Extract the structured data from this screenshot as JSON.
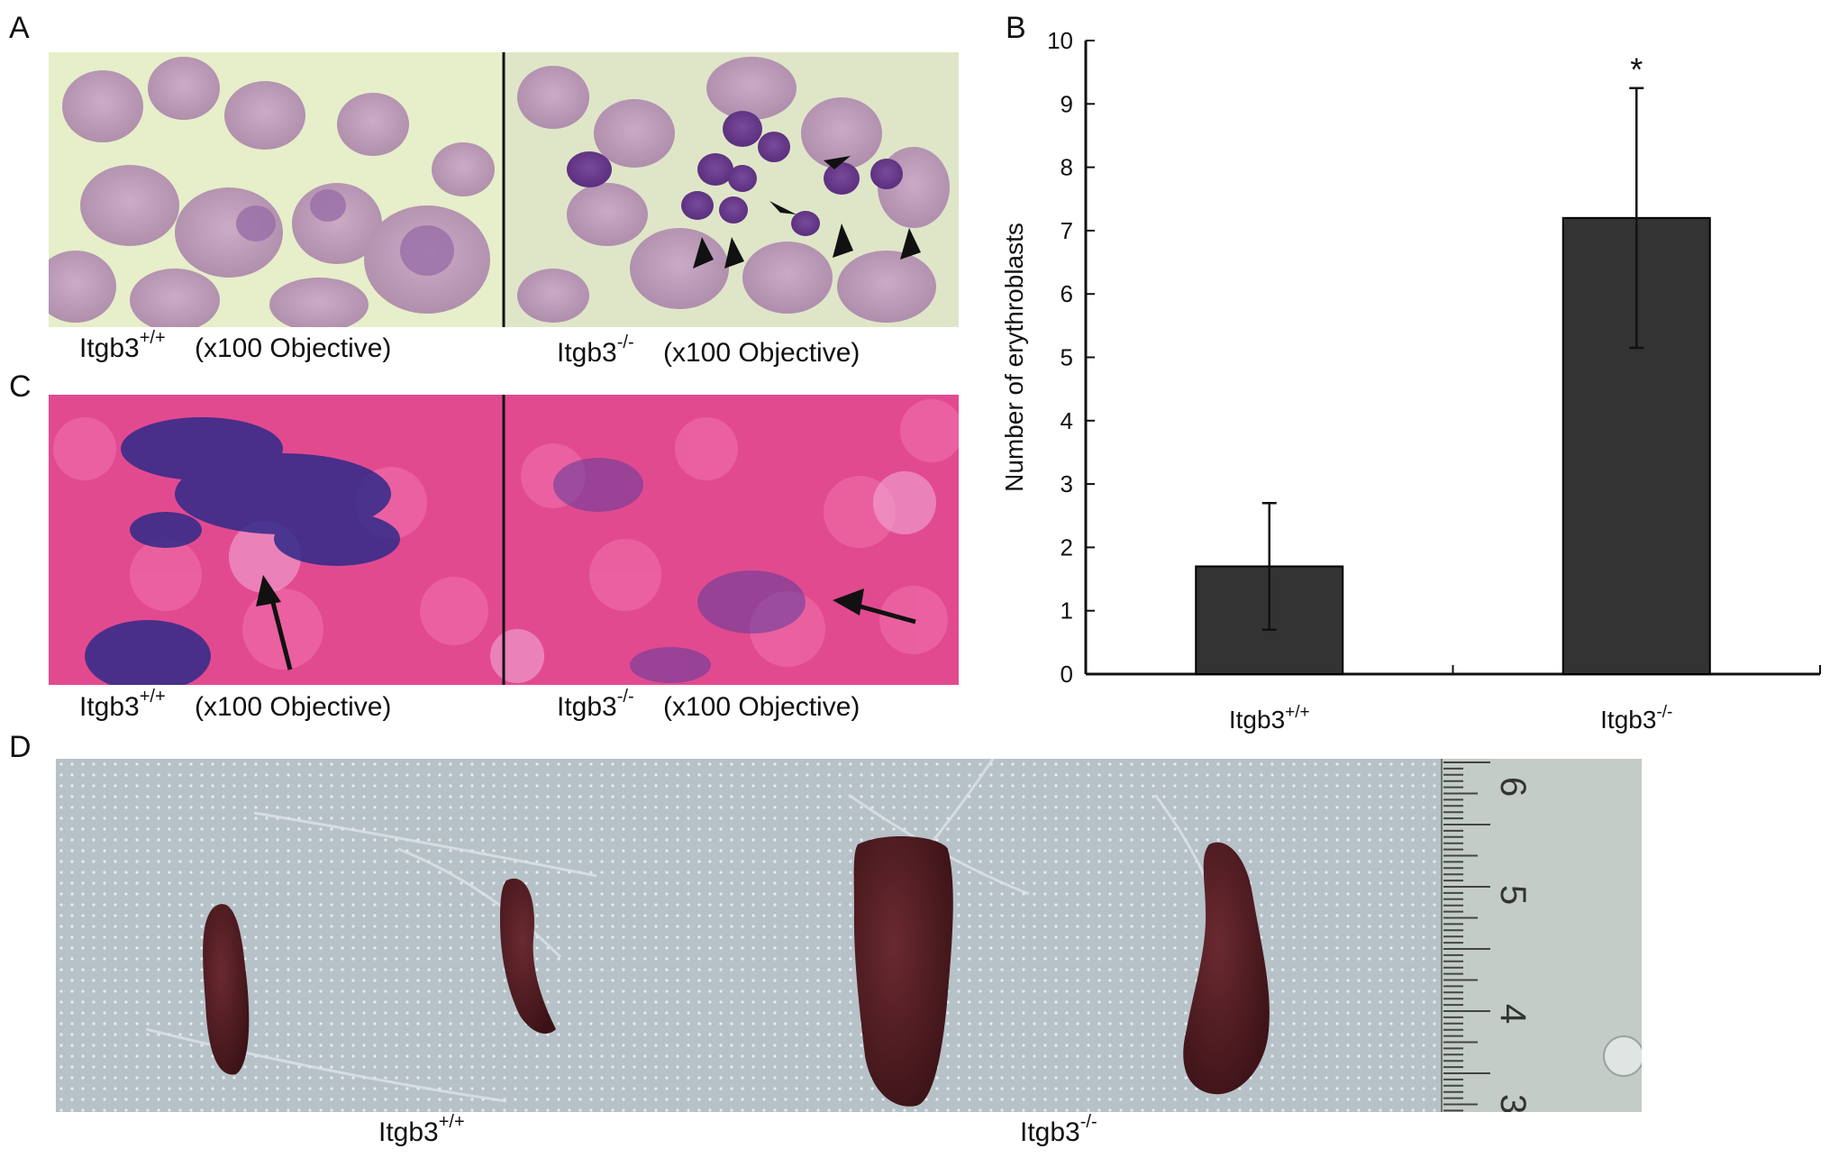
{
  "panels": {
    "A": {
      "letter": "A",
      "left_caption": {
        "genotype_base": "Itgb3",
        "genotype_sup": "+/+",
        "magnification": "(x100 Objective)"
      },
      "right_caption": {
        "genotype_base": "Itgb3",
        "genotype_sup": "-/-",
        "magnification": "(x100 Objective)"
      }
    },
    "C": {
      "letter": "C",
      "left_caption": {
        "genotype_base": "Itgb3",
        "genotype_sup": "+/+",
        "magnification": "(x100 Objective)"
      },
      "right_caption": {
        "genotype_base": "Itgb3",
        "genotype_sup": "-/-",
        "magnification": "(x100 Objective)"
      }
    },
    "B": {
      "letter": "B"
    },
    "D": {
      "letter": "D",
      "left_caption": {
        "genotype_base": "Itgb3",
        "genotype_sup": "+/+"
      },
      "right_caption": {
        "genotype_base": "Itgb3",
        "genotype_sup": "-/-"
      },
      "ruler_labels": [
        "6",
        "5",
        "4",
        "3"
      ]
    }
  },
  "colors": {
    "bar_fill": "#333333",
    "wright_stain_bg": "#e8efc8",
    "wright_stain_cells": "#b88fb6",
    "prussian_blue_bg": "#e0488c",
    "prussian_blue_deposit": "#3a2a8a",
    "spleen": "#4a1a1e",
    "mat": "#b8c4c9"
  },
  "chart_data": {
    "type": "bar",
    "categories": [
      "Itgb3+/+",
      "Itgb3-/-"
    ],
    "category_labels": [
      {
        "base": "Itgb3",
        "sup": "+/+"
      },
      {
        "base": "Itgb3",
        "sup": "-/-"
      }
    ],
    "values": [
      1.7,
      7.2
    ],
    "error_bars": [
      1.0,
      2.05
    ],
    "significance": [
      "",
      "*"
    ],
    "ylabel": "Number of erythroblasts",
    "xlabel": "",
    "ylim": [
      0,
      10
    ],
    "yticks": [
      0,
      1,
      2,
      3,
      4,
      5,
      6,
      7,
      8,
      9,
      10
    ],
    "grid": false
  }
}
